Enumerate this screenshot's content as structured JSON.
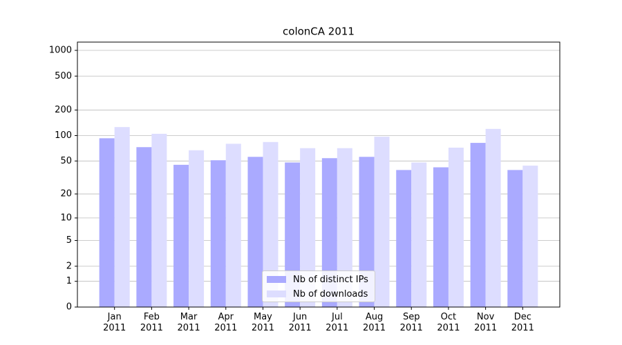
{
  "chart_data": {
    "type": "bar",
    "title": "colonCA 2011",
    "categories": [
      "Jan\n2011",
      "Feb\n2011",
      "Mar\n2011",
      "Apr\n2011",
      "May\n2011",
      "Jun\n2011",
      "Jul\n2011",
      "Aug\n2011",
      "Sep\n2011",
      "Oct\n2011",
      "Nov\n2011",
      "Dec\n2011"
    ],
    "series": [
      {
        "name": "Nb of distinct IPs",
        "color": "#aaaaff",
        "values": [
          93,
          73,
          45,
          51,
          56,
          48,
          54,
          56,
          39,
          42,
          82,
          39
        ]
      },
      {
        "name": "Nb of downloads",
        "color": "#ddddff",
        "values": [
          126,
          105,
          67,
          80,
          84,
          71,
          71,
          97,
          48,
          72,
          120,
          44
        ]
      }
    ],
    "ylim": [
      0,
      1250
    ],
    "yticks": [
      0,
      1,
      2,
      5,
      10,
      20,
      50,
      100,
      200,
      500,
      1000
    ],
    "yscale": "symlog",
    "grid": true,
    "legend": "lower center"
  }
}
